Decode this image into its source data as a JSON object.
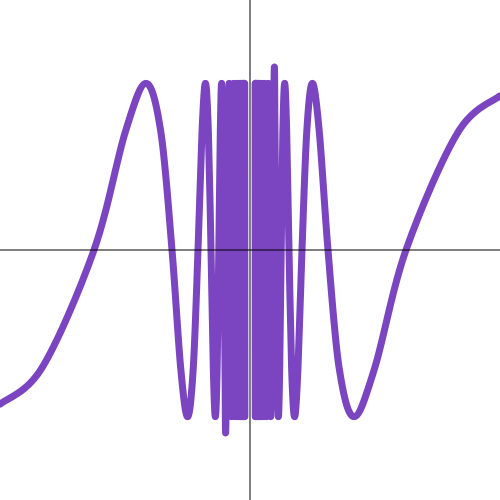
{
  "chart_data": {
    "type": "line",
    "x": [
      -1,
      -0.832,
      -0.624,
      -0.499,
      -0.416,
      -0.3565,
      -0.312,
      -0.2773,
      -0.2496,
      -0.2269,
      -0.208,
      -0.192,
      -0.1783,
      -0.1664,
      -0.156,
      -0.1468,
      -0.1387,
      -0.1314,
      -0.1248,
      -0.1188,
      -0.1135,
      -0.1085,
      -0.104,
      -0.0999,
      -0.096,
      -0.0832,
      -0.0734,
      -0.0657,
      -0.0594,
      -0.0543,
      -0.0499,
      -0.0462,
      -0.043,
      -0.0403,
      -0.0378,
      -0.0357,
      -0.0337,
      -0.032,
      -0.0304,
      -0.029,
      -0.0277,
      -0.0265,
      -0.0255,
      -0.0245,
      -0.0235,
      -0.0227,
      -0.0219,
      -0.0211,
      -0.0205,
      0,
      0.0205,
      0.0211,
      0.0219,
      0.0227,
      0.0235,
      0.0245,
      0.0255,
      0.0265,
      0.0277,
      0.029,
      0.0304,
      0.032,
      0.0337,
      0.0357,
      0.0378,
      0.0403,
      0.043,
      0.0462,
      0.0499,
      0.0543,
      0.0594,
      0.0657,
      0.0734,
      0.0832,
      0.096,
      0.0999,
      0.104,
      0.1085,
      0.1135,
      0.1188,
      0.1248,
      0.1314,
      0.1387,
      0.1468,
      0.156,
      0.1664,
      0.1783,
      0.192,
      0.208,
      0.2269,
      0.2496,
      0.2773,
      0.312,
      0.3565,
      0.416,
      0.499,
      0.624,
      0.832,
      1
    ],
    "series": [
      {
        "color": "#7b44c1",
        "values": [
          -0.925,
          -0.707,
          0,
          0.707,
          1,
          0.707,
          0,
          -0.707,
          -1,
          -0.707,
          0,
          0.707,
          1,
          0.707,
          0,
          -0.707,
          -1,
          -0.707,
          0,
          0.707,
          1,
          0.707,
          0,
          -0.707,
          -1,
          1,
          -1,
          1,
          -1,
          1,
          -1,
          1,
          -1,
          1,
          -1,
          1,
          -1,
          1,
          -1,
          1,
          -1,
          1,
          -1,
          1,
          -1,
          1,
          -1,
          1,
          -1,
          null,
          1,
          -1,
          1,
          -1,
          1,
          -1,
          1,
          -1,
          1,
          -1,
          1,
          -1,
          1,
          -1,
          1,
          -1,
          1,
          -1,
          1,
          -1,
          1,
          -1,
          1,
          -1,
          1,
          0.707,
          0,
          -0.707,
          -1,
          -0.707,
          0,
          0.707,
          1,
          0.707,
          0,
          -0.707,
          -1,
          -0.707,
          0,
          0.707,
          1,
          0.707,
          0,
          -0.707,
          -1,
          -0.707,
          0,
          0.707,
          0.925
        ]
      }
    ],
    "xlim": [
      -1,
      1
    ],
    "ylim": [
      -1.5,
      1.5
    ],
    "axes": true,
    "axis_color": "#000000"
  }
}
